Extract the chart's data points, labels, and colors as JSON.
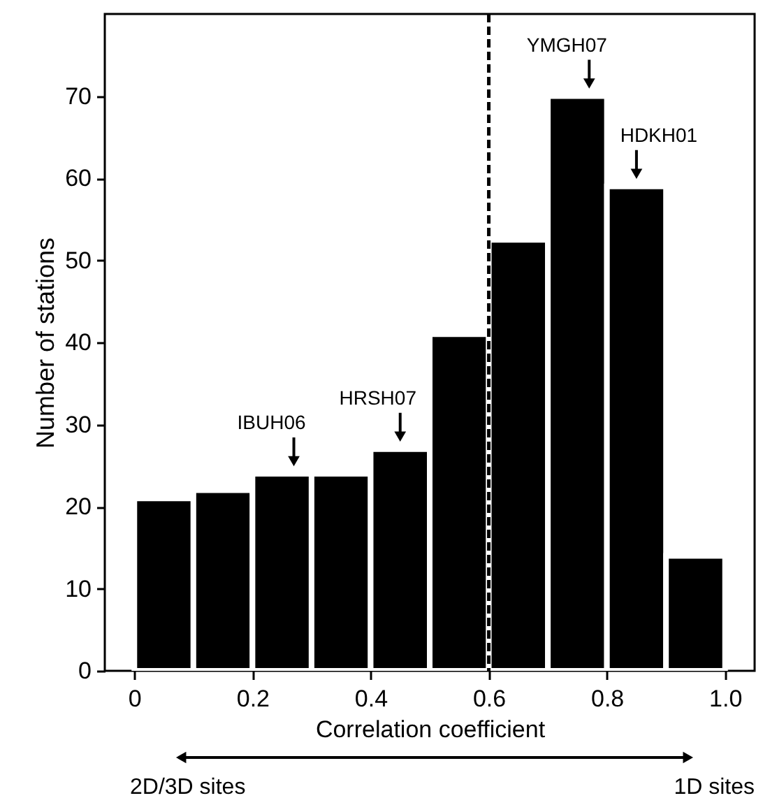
{
  "chart_data": {
    "type": "histogram",
    "xlabel": "Correlation coefficient",
    "ylabel": "Number of stations",
    "bins": [
      0,
      0.1,
      0.2,
      0.3,
      0.4,
      0.5,
      0.6,
      0.7,
      0.8,
      0.9,
      1.0
    ],
    "values": [
      21,
      22,
      24,
      24,
      27,
      41,
      52.5,
      70,
      59,
      14
    ],
    "color": "#000000",
    "xlim": [
      -0.05,
      1.05
    ],
    "xticks": [
      {
        "value": 0,
        "label": "0"
      },
      0.2,
      0.4,
      0.6,
      0.8,
      {
        "value": 1.0,
        "label": "1.0"
      }
    ],
    "ylim": [
      0,
      80
    ],
    "yticks": [
      0,
      10,
      20,
      30,
      40,
      50,
      60,
      70
    ],
    "grid": false,
    "ref_lines": [
      {
        "axis": "x",
        "value": 0.6,
        "color": "#000000",
        "line_style": "dashed"
      }
    ],
    "annotations": [
      {
        "text": "IBUH06",
        "x": 0.27,
        "y": 24
      },
      {
        "text": "HRSH07",
        "x": 0.45,
        "y": 27
      },
      {
        "text": "YMGH07",
        "x": 0.77,
        "y": 70
      },
      {
        "text": "HDKH01",
        "x": 0.85,
        "y": 59
      },
      "2D/3D sites",
      "1D sites"
    ]
  }
}
